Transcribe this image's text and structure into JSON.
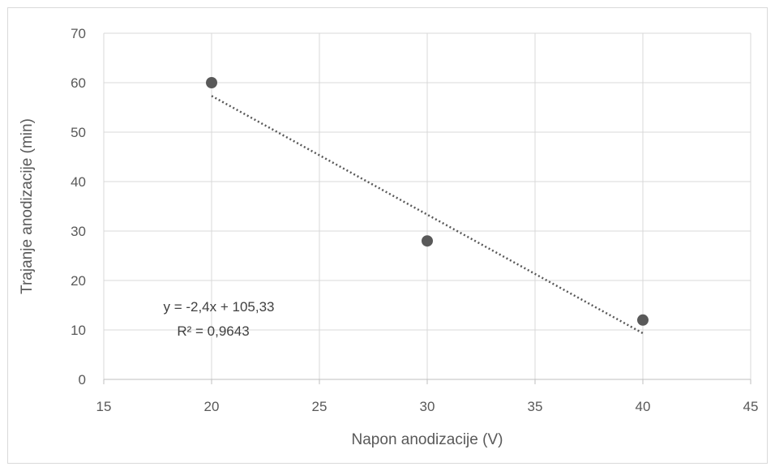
{
  "chart_data": {
    "type": "scatter",
    "x": [
      20,
      30,
      40
    ],
    "y": [
      60,
      28,
      12
    ],
    "xlabel": "Napon anodizacije (V)",
    "ylabel": "Trajanje anodizacije (min)",
    "xlim": [
      15,
      45
    ],
    "ylim": [
      0,
      70
    ],
    "xticks": [
      15,
      20,
      25,
      30,
      35,
      40,
      45
    ],
    "yticks": [
      0,
      10,
      20,
      30,
      40,
      50,
      60,
      70
    ],
    "grid": true,
    "trendline": {
      "type": "linear",
      "slope": -2.4,
      "intercept": 105.33,
      "x_range": [
        20,
        40
      ],
      "style": "dotted",
      "equation_label": "y = -2,4x + 105,33",
      "r2_label": "R² = 0,9643"
    },
    "colors": {
      "marker": "#595959",
      "gridline": "#d9d9d9",
      "axis": "#bfbfbf",
      "trendline": "#595959"
    }
  }
}
